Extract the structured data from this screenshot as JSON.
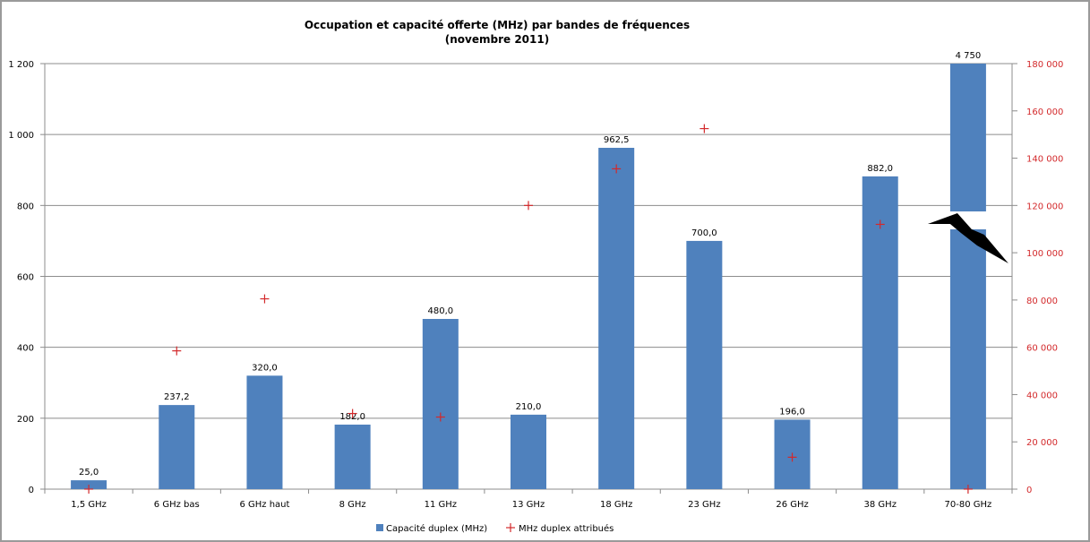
{
  "chart_data": {
    "type": "bar",
    "title": "Occupation et capacité offerte (MHz) par bandes de fréquences",
    "subtitle": "(novembre 2011)",
    "categories": [
      "1,5 GHz",
      "6 GHz bas",
      "6 GHz haut",
      "8 GHz",
      "11 GHz",
      "13 GHz",
      "18 GHz",
      "23 GHz",
      "26 GHz",
      "38 GHz",
      "70-80 GHz"
    ],
    "series": [
      {
        "name": "Capacité duplex (MHz)",
        "type": "bar",
        "axis": "left",
        "color": "#4f81bd",
        "values": [
          25.0,
          237.2,
          320.0,
          182.0,
          480.0,
          210.0,
          962.5,
          700.0,
          196.0,
          882.0,
          4750
        ],
        "data_labels": [
          "25,0",
          "237,2",
          "320,0",
          "182,0",
          "480,0",
          "210,0",
          "962,5",
          "700,0",
          "196,0",
          "882,0",
          "4 750"
        ]
      },
      {
        "name": "MHz duplex attribués",
        "type": "scatter",
        "marker": "plus",
        "axis": "right",
        "color": "#d3292b",
        "values": [
          0,
          58500,
          80500,
          32000,
          30500,
          120000,
          135500,
          152500,
          13500,
          112000,
          0
        ]
      }
    ],
    "y_left": {
      "ylim": [
        0,
        1200
      ],
      "ticks": [
        0,
        200,
        400,
        600,
        800,
        1000,
        1200
      ],
      "tick_labels": [
        "0",
        "200",
        "400",
        "600",
        "800",
        "1 000",
        "1 200"
      ]
    },
    "y_right": {
      "ylim": [
        0,
        180000
      ],
      "ticks": [
        0,
        20000,
        40000,
        60000,
        80000,
        100000,
        120000,
        140000,
        160000,
        180000
      ],
      "tick_labels": [
        "0",
        "20 000",
        "40 000",
        "60 000",
        "80 000",
        "100 000",
        "120 000",
        "140 000",
        "160 000",
        "180 000"
      ],
      "color": "#d3292b"
    },
    "axis_break": {
      "category": "70-80 GHz",
      "visual_top_value": 1200
    },
    "grid": true,
    "legend": "bottom"
  }
}
